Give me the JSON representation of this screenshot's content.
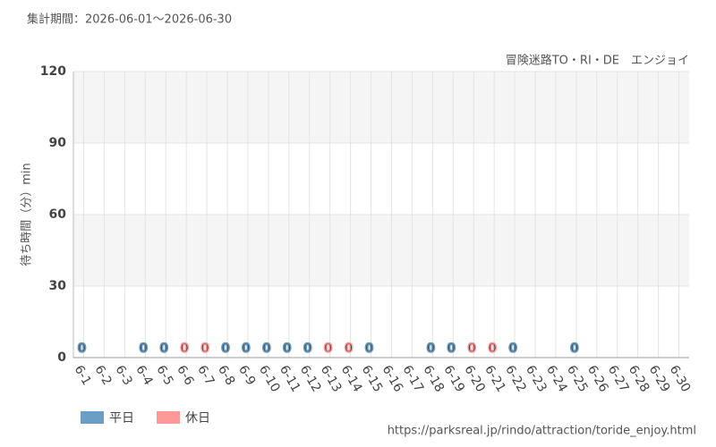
{
  "chart_data": {
    "type": "bar",
    "title": "集計期間：2026-06-01～2026-06-30",
    "subtitle": "冒険迷路TO・RI・DE　エンジョイ",
    "y_label": "待ち時間（分）min",
    "source": "https://parksreal.jp/rindo/attraction/toride_enjoy.html",
    "categories": [
      "6-1",
      "6-2",
      "6-3",
      "6-4",
      "6-5",
      "6-6",
      "6-7",
      "6-8",
      "6-9",
      "6-10",
      "6-11",
      "6-12",
      "6-13",
      "6-14",
      "6-15",
      "6-16",
      "6-17",
      "6-18",
      "6-19",
      "6-20",
      "6-21",
      "6-22",
      "6-23",
      "6-24",
      "6-25",
      "6-26",
      "6-27",
      "6-28",
      "6-29",
      "6-30"
    ],
    "category_series": [
      0,
      0,
      0,
      0,
      0,
      1,
      1,
      0,
      0,
      0,
      0,
      0,
      1,
      1,
      0,
      0,
      0,
      0,
      0,
      1,
      1,
      0,
      0,
      0,
      0,
      0,
      1,
      1,
      0,
      0
    ],
    "series": [
      {
        "name": "平日",
        "color": "#6a9ec5",
        "values": [
          0,
          null,
          null,
          0,
          0,
          null,
          null,
          0,
          0,
          0,
          0,
          0,
          null,
          null,
          0,
          null,
          null,
          0,
          0,
          null,
          null,
          0,
          null,
          null,
          0,
          null,
          null,
          null,
          null,
          null
        ]
      },
      {
        "name": "休日",
        "color": "#ff9999",
        "values": [
          null,
          null,
          null,
          null,
          null,
          0,
          0,
          null,
          null,
          null,
          null,
          null,
          0,
          0,
          null,
          null,
          null,
          null,
          null,
          0,
          0,
          null,
          null,
          null,
          null,
          null,
          null,
          null,
          null,
          null
        ]
      }
    ],
    "ylim": [
      0,
      120
    ],
    "yticks": [
      0,
      30,
      60,
      90,
      120
    ],
    "grid": true
  }
}
